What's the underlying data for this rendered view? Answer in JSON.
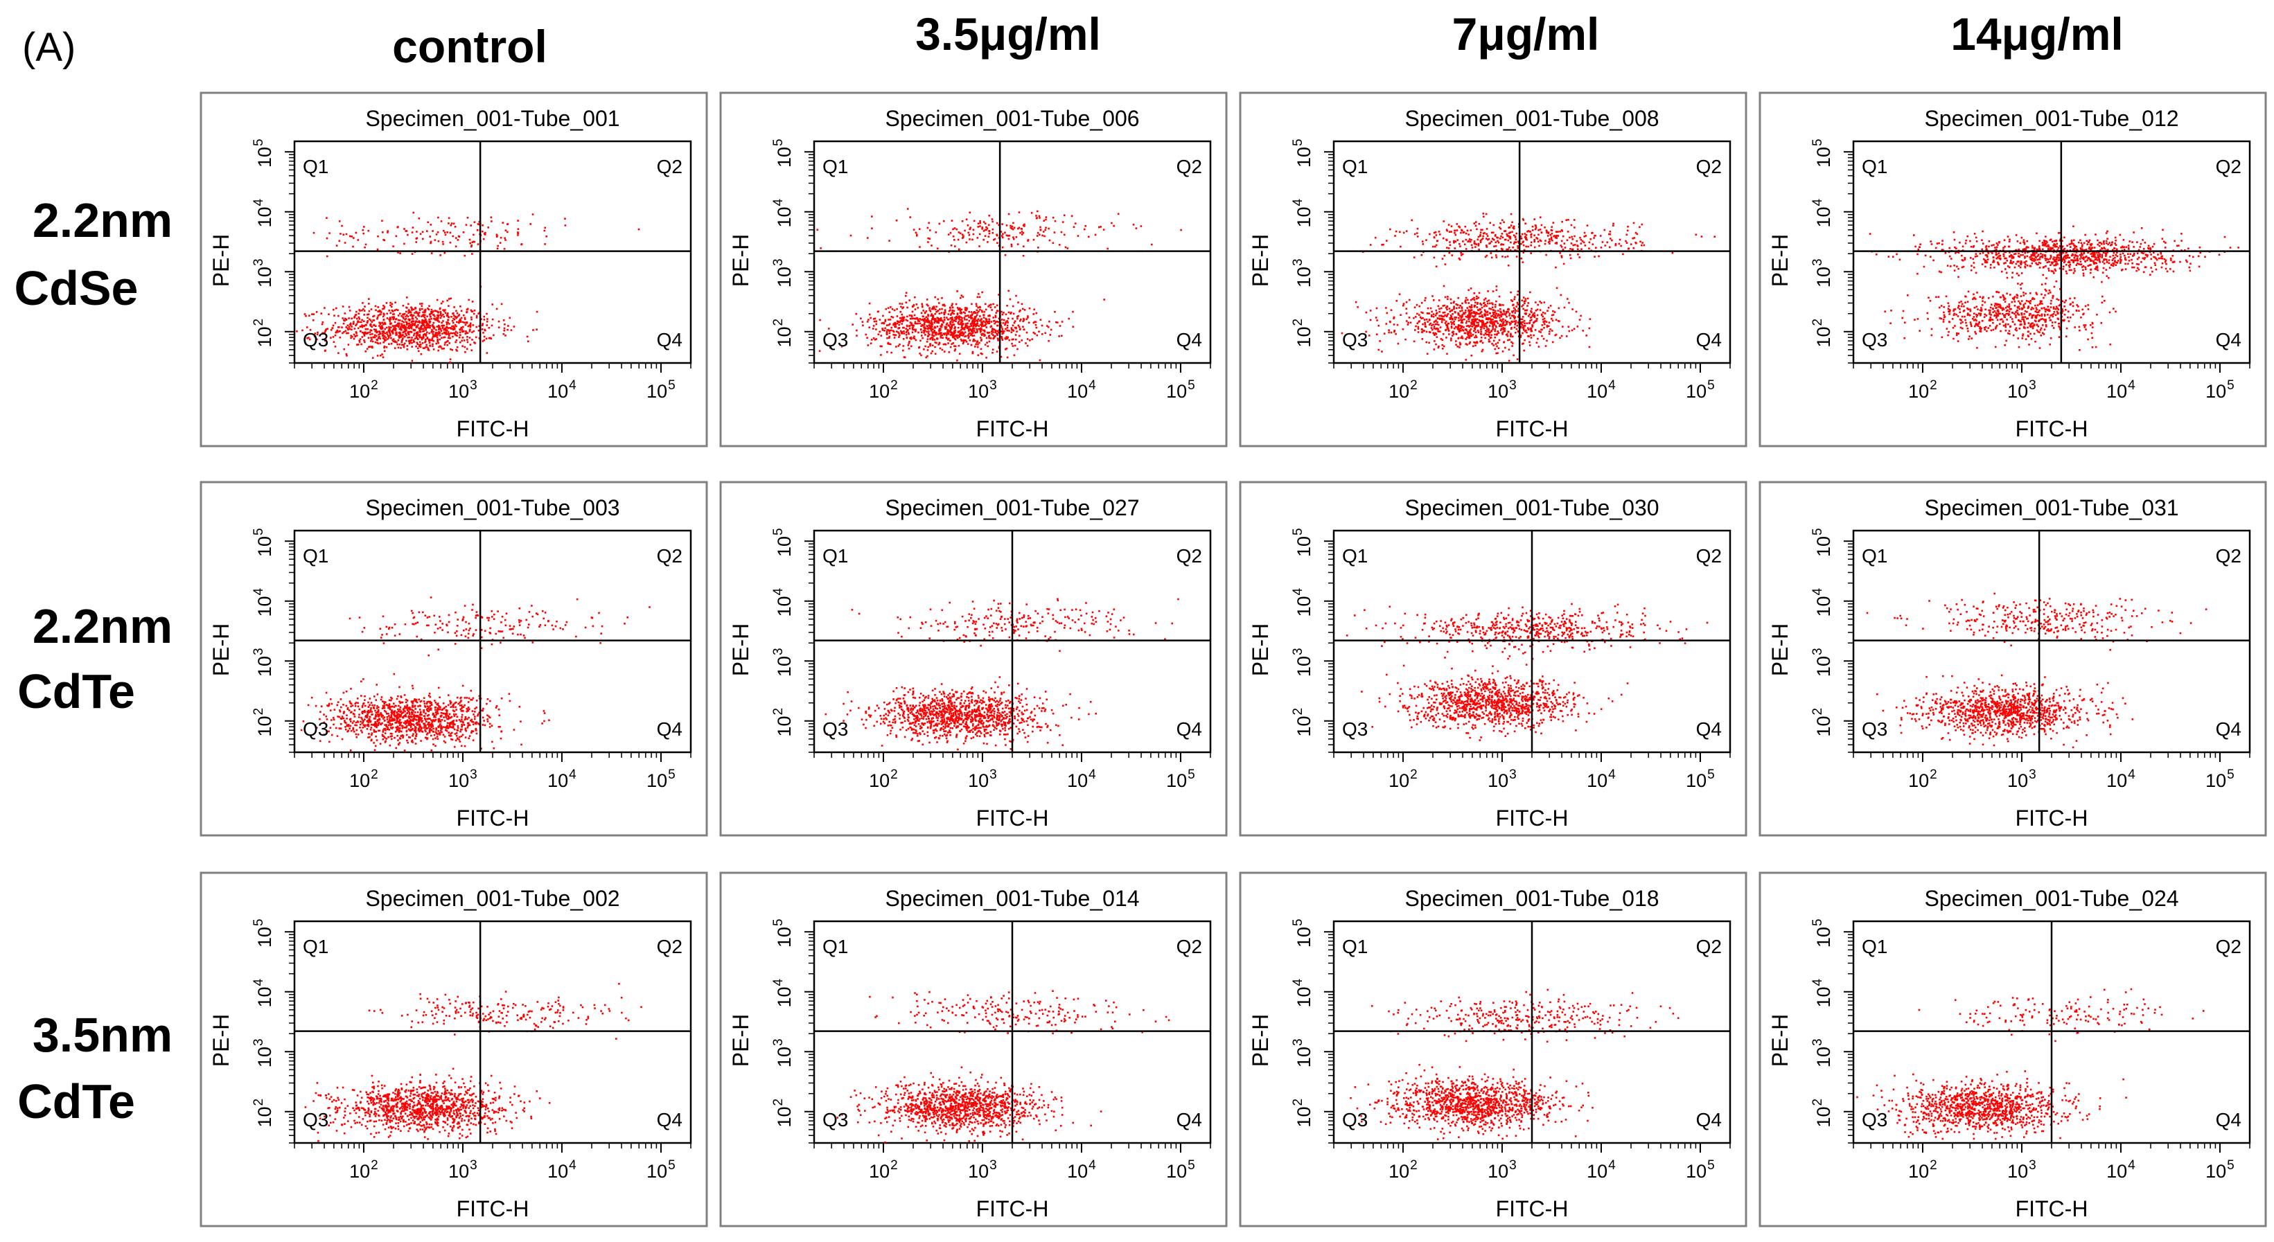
{
  "figure_label": "(A)",
  "columns": [
    "control",
    "3.5μg/ml",
    "7μg/ml",
    "14μg/ml"
  ],
  "rows": [
    {
      "line1": "2.2nm",
      "line2": "CdSe"
    },
    {
      "line1": "2.2nm",
      "line2": "CdTe"
    },
    {
      "line1": "3.5nm",
      "line2": "CdTe"
    }
  ],
  "colors": {
    "points": "#ff0000",
    "axes": "#000000",
    "frame": "#808080"
  },
  "chart_data": [
    {
      "type": "scatter",
      "title": "Specimen_001-Tube_001",
      "xlabel": "FITC-H",
      "ylabel": "PE-H",
      "xscale": "log",
      "yscale": "log",
      "xlim": [
        20,
        200000
      ],
      "ylim": [
        30,
        150000
      ],
      "gate": {
        "x": 1500,
        "y": 2200
      },
      "quadrants": [
        "Q1",
        "Q2",
        "Q3",
        "Q4"
      ],
      "clusters": [
        {
          "x": 300,
          "y": 120,
          "n": 1100
        },
        {
          "x": 700,
          "y": 4500,
          "n": 160
        }
      ]
    },
    {
      "type": "scatter",
      "title": "Specimen_001-Tube_006",
      "xlabel": "FITC-H",
      "ylabel": "PE-H",
      "xscale": "log",
      "yscale": "log",
      "xlim": [
        20,
        200000
      ],
      "ylim": [
        30,
        150000
      ],
      "gate": {
        "x": 1500,
        "y": 2200
      },
      "quadrants": [
        "Q1",
        "Q2",
        "Q3",
        "Q4"
      ],
      "clusters": [
        {
          "x": 500,
          "y": 130,
          "n": 1100
        },
        {
          "x": 1500,
          "y": 4800,
          "n": 200
        }
      ]
    },
    {
      "type": "scatter",
      "title": "Specimen_001-Tube_008",
      "xlabel": "FITC-H",
      "ylabel": "PE-H",
      "xscale": "log",
      "yscale": "log",
      "xlim": [
        20,
        200000
      ],
      "ylim": [
        30,
        150000
      ],
      "gate": {
        "x": 1500,
        "y": 2200
      },
      "quadrants": [
        "Q1",
        "Q2",
        "Q3",
        "Q4"
      ],
      "clusters": [
        {
          "x": 600,
          "y": 150,
          "n": 1000
        },
        {
          "x": 1500,
          "y": 3500,
          "n": 450
        }
      ]
    },
    {
      "type": "scatter",
      "title": "Specimen_001-Tube_012",
      "xlabel": "FITC-H",
      "ylabel": "PE-H",
      "xscale": "log",
      "yscale": "log",
      "xlim": [
        20,
        200000
      ],
      "ylim": [
        30,
        150000
      ],
      "gate": {
        "x": 2500,
        "y": 2200
      },
      "quadrants": [
        "Q1",
        "Q2",
        "Q3",
        "Q4"
      ],
      "clusters": [
        {
          "x": 800,
          "y": 200,
          "n": 600
        },
        {
          "x": 2500,
          "y": 2000,
          "n": 900
        }
      ]
    },
    {
      "type": "scatter",
      "title": "Specimen_001-Tube_003",
      "xlabel": "FITC-H",
      "ylabel": "PE-H",
      "xscale": "log",
      "yscale": "log",
      "xlim": [
        20,
        200000
      ],
      "ylim": [
        30,
        150000
      ],
      "gate": {
        "x": 1500,
        "y": 2200
      },
      "quadrants": [
        "Q1",
        "Q2",
        "Q3",
        "Q4"
      ],
      "clusters": [
        {
          "x": 300,
          "y": 110,
          "n": 1100
        },
        {
          "x": 1500,
          "y": 4000,
          "n": 170
        }
      ]
    },
    {
      "type": "scatter",
      "title": "Specimen_001-Tube_027",
      "xlabel": "FITC-H",
      "ylabel": "PE-H",
      "xscale": "log",
      "yscale": "log",
      "xlim": [
        20,
        200000
      ],
      "ylim": [
        30,
        150000
      ],
      "gate": {
        "x": 2000,
        "y": 2200
      },
      "quadrants": [
        "Q1",
        "Q2",
        "Q3",
        "Q4"
      ],
      "clusters": [
        {
          "x": 600,
          "y": 130,
          "n": 1100
        },
        {
          "x": 2000,
          "y": 4500,
          "n": 220
        }
      ]
    },
    {
      "type": "scatter",
      "title": "Specimen_001-Tube_030",
      "xlabel": "FITC-H",
      "ylabel": "PE-H",
      "xscale": "log",
      "yscale": "log",
      "xlim": [
        20,
        200000
      ],
      "ylim": [
        30,
        150000
      ],
      "gate": {
        "x": 2000,
        "y": 2200
      },
      "quadrants": [
        "Q1",
        "Q2",
        "Q3",
        "Q4"
      ],
      "clusters": [
        {
          "x": 800,
          "y": 200,
          "n": 1000
        },
        {
          "x": 2000,
          "y": 3500,
          "n": 500
        }
      ]
    },
    {
      "type": "scatter",
      "title": "Specimen_001-Tube_031",
      "xlabel": "FITC-H",
      "ylabel": "PE-H",
      "xscale": "log",
      "yscale": "log",
      "xlim": [
        20,
        200000
      ],
      "ylim": [
        30,
        150000
      ],
      "gate": {
        "x": 1500,
        "y": 2200
      },
      "quadrants": [
        "Q1",
        "Q2",
        "Q3",
        "Q4"
      ],
      "clusters": [
        {
          "x": 700,
          "y": 150,
          "n": 1000
        },
        {
          "x": 1500,
          "y": 5000,
          "n": 300
        }
      ]
    },
    {
      "type": "scatter",
      "title": "Specimen_001-Tube_002",
      "xlabel": "FITC-H",
      "ylabel": "PE-H",
      "xscale": "log",
      "yscale": "log",
      "xlim": [
        20,
        200000
      ],
      "ylim": [
        30,
        150000
      ],
      "gate": {
        "x": 1500,
        "y": 2200
      },
      "quadrants": [
        "Q1",
        "Q2",
        "Q3",
        "Q4"
      ],
      "clusters": [
        {
          "x": 400,
          "y": 120,
          "n": 1100
        },
        {
          "x": 2000,
          "y": 4500,
          "n": 200
        }
      ]
    },
    {
      "type": "scatter",
      "title": "Specimen_001-Tube_014",
      "xlabel": "FITC-H",
      "ylabel": "PE-H",
      "xscale": "log",
      "yscale": "log",
      "xlim": [
        20,
        200000
      ],
      "ylim": [
        30,
        150000
      ],
      "gate": {
        "x": 2000,
        "y": 2200
      },
      "quadrants": [
        "Q1",
        "Q2",
        "Q3",
        "Q4"
      ],
      "clusters": [
        {
          "x": 600,
          "y": 120,
          "n": 1100
        },
        {
          "x": 2000,
          "y": 4500,
          "n": 200
        }
      ]
    },
    {
      "type": "scatter",
      "title": "Specimen_001-Tube_018",
      "xlabel": "FITC-H",
      "ylabel": "PE-H",
      "xscale": "log",
      "yscale": "log",
      "xlim": [
        20,
        200000
      ],
      "ylim": [
        30,
        150000
      ],
      "gate": {
        "x": 2000,
        "y": 2200
      },
      "quadrants": [
        "Q1",
        "Q2",
        "Q3",
        "Q4"
      ],
      "clusters": [
        {
          "x": 500,
          "y": 140,
          "n": 1100
        },
        {
          "x": 1500,
          "y": 4000,
          "n": 300
        }
      ]
    },
    {
      "type": "scatter",
      "title": "Specimen_001-Tube_024",
      "xlabel": "FITC-H",
      "ylabel": "PE-H",
      "xscale": "log",
      "yscale": "log",
      "xlim": [
        20,
        200000
      ],
      "ylim": [
        30,
        150000
      ],
      "gate": {
        "x": 2000,
        "y": 2200
      },
      "quadrants": [
        "Q1",
        "Q2",
        "Q3",
        "Q4"
      ],
      "clusters": [
        {
          "x": 400,
          "y": 120,
          "n": 1000
        },
        {
          "x": 2000,
          "y": 4500,
          "n": 150
        }
      ]
    }
  ]
}
